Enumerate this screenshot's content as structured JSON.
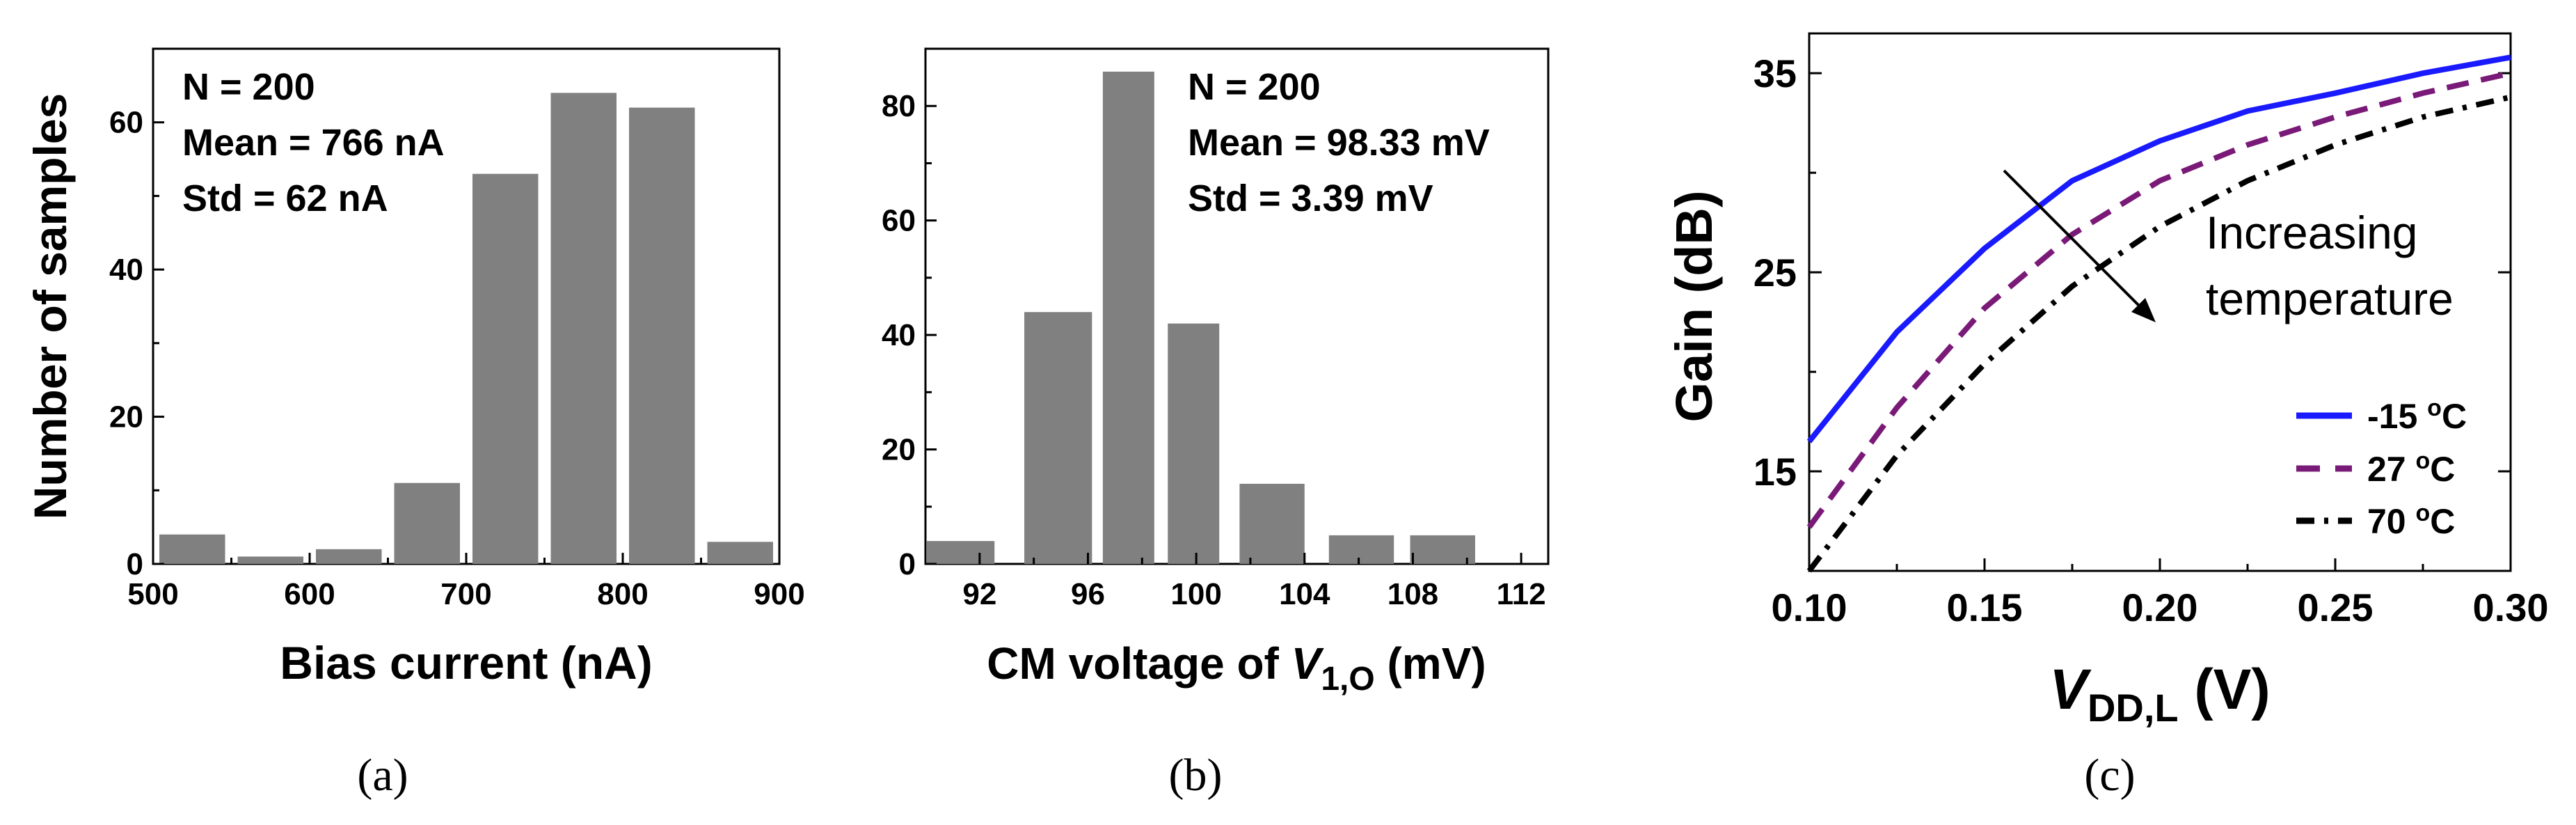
{
  "chart_data": [
    {
      "type": "bar",
      "panel": "(a)",
      "xlabel": "Bias current (nA)",
      "ylabel": "Number of samples",
      "xlim": [
        500,
        900
      ],
      "ylim": [
        0,
        70
      ],
      "xticks": [
        500,
        600,
        700,
        800,
        900
      ],
      "yticks": [
        0,
        20,
        40,
        60
      ],
      "bin_centers": [
        525,
        575,
        625,
        675,
        725,
        775,
        825,
        875
      ],
      "values": [
        4,
        1,
        2,
        11,
        53,
        64,
        62,
        3
      ],
      "annotations": [
        "N = 200",
        "Mean = 766 nA",
        "Std = 62 nA"
      ]
    },
    {
      "type": "bar",
      "panel": "(b)",
      "xlabel_prefix": "CM voltage of ",
      "xlabel_var": "V",
      "xlabel_sub": "1,O",
      "xlabel_suffix": " (mV)",
      "ylabel": "",
      "xlim": [
        90,
        113
      ],
      "ylim": [
        0,
        90
      ],
      "xticks": [
        92,
        96,
        100,
        104,
        108,
        112
      ],
      "yticks": [
        0,
        20,
        40,
        60,
        80
      ],
      "bin_centers": [
        91,
        95,
        97.5,
        100,
        103,
        106,
        109
      ],
      "values": [
        4,
        44,
        86,
        42,
        14,
        5,
        5
      ],
      "annotations": [
        "N = 200",
        "Mean = 98.33 mV",
        "Std = 3.39 mV"
      ]
    },
    {
      "type": "line",
      "panel": "(c)",
      "xlabel_var": "V",
      "xlabel_sub": "DD,L",
      "xlabel_suffix": " (V)",
      "ylabel": "Gain (dB)",
      "xlim": [
        0.1,
        0.3
      ],
      "ylim": [
        10,
        37
      ],
      "xticks": [
        "0.10",
        "0.15",
        "0.20",
        "0.25",
        "0.30"
      ],
      "yticks": [
        15,
        25,
        35
      ],
      "x": [
        0.1,
        0.125,
        0.15,
        0.175,
        0.2,
        0.225,
        0.25,
        0.275,
        0.3
      ],
      "series": [
        {
          "name": "-15",
          "color": "#1a1aff",
          "dash": "solid",
          "values": [
            16.5,
            22.0,
            26.2,
            29.6,
            31.6,
            33.1,
            34.0,
            35.0,
            35.8
          ]
        },
        {
          "name": "27",
          "color": "#7a1a78",
          "dash": "dash",
          "values": [
            12.2,
            18.2,
            23.2,
            26.9,
            29.6,
            31.4,
            32.8,
            34.0,
            35.0
          ]
        },
        {
          "name": "70",
          "color": "#000000",
          "dash": "dashdot",
          "values": [
            10.0,
            15.8,
            20.4,
            24.3,
            27.3,
            29.6,
            31.4,
            32.8,
            33.8
          ]
        }
      ],
      "legend_unit": "C",
      "legend_sup": "o",
      "annotation": [
        "Increasing",
        "temperature"
      ]
    }
  ],
  "captions": [
    "(a)",
    "(b)",
    "(c)"
  ]
}
